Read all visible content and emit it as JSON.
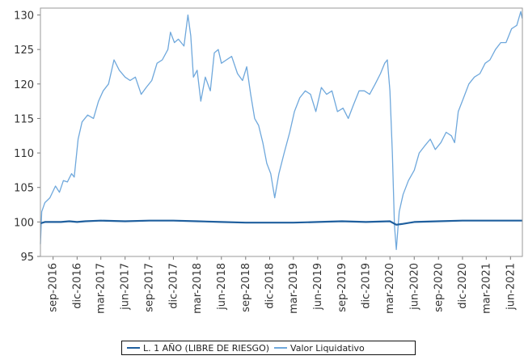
{
  "chart_data": {
    "type": "line",
    "title": "",
    "xlabel": "",
    "ylabel": "",
    "ylim": [
      95,
      131
    ],
    "yticks": [
      95,
      100,
      105,
      110,
      115,
      120,
      125,
      130
    ],
    "x_tick_labels": [
      "sep-2016",
      "dic-2016",
      "mar-2017",
      "jun-2017",
      "sep-2017",
      "dic-2017",
      "mar-2018",
      "jun-2018",
      "sep-2018",
      "dic-2018",
      "mar-2019",
      "jun-2019",
      "sep-2019",
      "dic-2019",
      "mar-2020",
      "jun-2020",
      "sep-2020",
      "dic-2020",
      "mar-2021",
      "jun-2021"
    ],
    "grid": false,
    "legend_position": "bottom",
    "series": [
      {
        "name": "L. 1 AÑO (LIBRE DE RIESGO)",
        "color": "#1f5f9e",
        "x": [
          "2016-07-15",
          "2016-08-01",
          "2016-09-01",
          "2016-10-01",
          "2016-11-01",
          "2016-12-01",
          "2017-01-01",
          "2017-03-01",
          "2017-06-01",
          "2017-09-01",
          "2017-12-01",
          "2018-03-01",
          "2018-06-01",
          "2018-09-01",
          "2018-12-01",
          "2019-03-01",
          "2019-06-01",
          "2019-09-01",
          "2019-12-01",
          "2020-03-01",
          "2020-03-25",
          "2020-04-15",
          "2020-06-01",
          "2020-09-01",
          "2020-12-01",
          "2021-03-01",
          "2021-06-01",
          "2021-07-15"
        ],
        "y": [
          99.8,
          100.0,
          100.0,
          100.0,
          100.1,
          100.0,
          100.1,
          100.2,
          100.1,
          100.2,
          100.2,
          100.1,
          100.0,
          99.9,
          99.9,
          99.9,
          100.0,
          100.1,
          100.0,
          100.1,
          99.6,
          99.7,
          100.0,
          100.1,
          100.2,
          100.2,
          100.2,
          100.2
        ]
      },
      {
        "name": "Valor Liquidativo",
        "color": "#6fa8dc",
        "x": [
          "2016-07-15",
          "2016-07-20",
          "2016-08-01",
          "2016-08-20",
          "2016-09-10",
          "2016-09-25",
          "2016-10-10",
          "2016-10-25",
          "2016-11-10",
          "2016-11-20",
          "2016-12-05",
          "2016-12-20",
          "2017-01-10",
          "2017-02-01",
          "2017-02-20",
          "2017-03-10",
          "2017-03-30",
          "2017-04-20",
          "2017-05-10",
          "2017-06-01",
          "2017-06-20",
          "2017-07-10",
          "2017-08-01",
          "2017-08-20",
          "2017-09-10",
          "2017-09-30",
          "2017-10-20",
          "2017-11-10",
          "2017-11-20",
          "2017-12-05",
          "2017-12-20",
          "2018-01-10",
          "2018-01-25",
          "2018-02-05",
          "2018-02-15",
          "2018-03-01",
          "2018-03-15",
          "2018-04-01",
          "2018-04-20",
          "2018-05-05",
          "2018-05-20",
          "2018-06-01",
          "2018-06-20",
          "2018-07-10",
          "2018-08-01",
          "2018-08-20",
          "2018-09-05",
          "2018-09-20",
          "2018-10-05",
          "2018-10-20",
          "2018-11-05",
          "2018-11-20",
          "2018-12-05",
          "2018-12-20",
          "2019-01-05",
          "2019-01-25",
          "2019-02-15",
          "2019-03-05",
          "2019-03-25",
          "2019-04-15",
          "2019-05-05",
          "2019-05-25",
          "2019-06-15",
          "2019-07-05",
          "2019-07-25",
          "2019-08-15",
          "2019-09-05",
          "2019-09-25",
          "2019-10-15",
          "2019-11-05",
          "2019-11-25",
          "2019-12-15",
          "2020-01-05",
          "2020-01-25",
          "2020-02-10",
          "2020-02-20",
          "2020-03-01",
          "2020-03-10",
          "2020-03-18",
          "2020-03-25",
          "2020-04-05",
          "2020-04-20",
          "2020-05-10",
          "2020-06-01",
          "2020-06-20",
          "2020-07-10",
          "2020-08-01",
          "2020-08-20",
          "2020-09-10",
          "2020-09-30",
          "2020-10-20",
          "2020-11-01",
          "2020-11-15",
          "2020-12-05",
          "2020-12-25",
          "2021-01-15",
          "2021-02-05",
          "2021-02-25",
          "2021-03-15",
          "2021-04-05",
          "2021-04-25",
          "2021-05-15",
          "2021-06-05",
          "2021-06-25",
          "2021-07-10",
          "2021-07-15"
        ],
        "y": [
          96.8,
          101.5,
          102.8,
          103.5,
          105.2,
          104.3,
          106.0,
          105.8,
          107.0,
          106.5,
          112.0,
          114.5,
          115.5,
          115.0,
          117.5,
          119.0,
          120.0,
          123.5,
          122.0,
          121.0,
          120.5,
          121.0,
          118.5,
          119.5,
          120.5,
          123.0,
          123.5,
          125.0,
          127.5,
          126.0,
          126.5,
          125.5,
          130.0,
          127.0,
          121.0,
          122.0,
          117.5,
          121.0,
          119.0,
          124.5,
          125.0,
          123.0,
          123.5,
          124.0,
          121.5,
          120.5,
          122.5,
          118.5,
          115.0,
          114.0,
          111.5,
          108.5,
          107.0,
          103.5,
          107.0,
          110.0,
          113.0,
          116.0,
          118.0,
          119.0,
          118.5,
          116.0,
          119.5,
          118.5,
          119.0,
          116.0,
          116.5,
          115.0,
          117.0,
          119.0,
          119.0,
          118.5,
          120.0,
          121.5,
          123.0,
          123.5,
          119.0,
          110.0,
          99.5,
          96.0,
          101.5,
          104.0,
          106.0,
          107.5,
          110.0,
          111.0,
          112.0,
          110.5,
          111.5,
          113.0,
          112.5,
          111.5,
          116.0,
          118.0,
          120.0,
          121.0,
          121.5,
          123.0,
          123.5,
          125.0,
          126.0,
          126.0,
          128.0,
          128.5,
          130.5,
          129.5
        ]
      }
    ]
  }
}
